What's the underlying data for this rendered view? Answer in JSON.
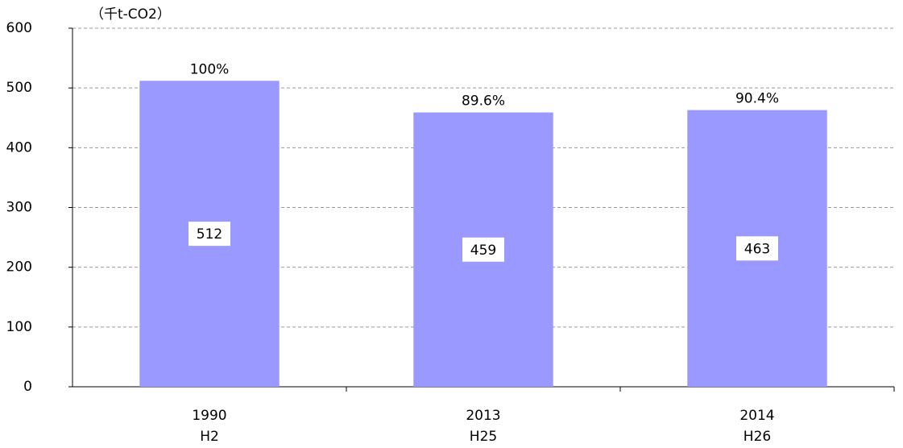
{
  "chart_data": {
    "type": "bar",
    "y_axis_label": "（千t-CO2）",
    "categories": [
      "1990",
      "2013",
      "2014"
    ],
    "era_labels": [
      "H2",
      "H25",
      "H26"
    ],
    "values": [
      512,
      459,
      463
    ],
    "percent_labels": [
      "100%",
      "89.6%",
      "90.4%"
    ],
    "color": "#9999ff",
    "ylim": [
      0,
      600
    ],
    "yticks": [
      0,
      100,
      200,
      300,
      400,
      500,
      600
    ],
    "grid": true
  }
}
